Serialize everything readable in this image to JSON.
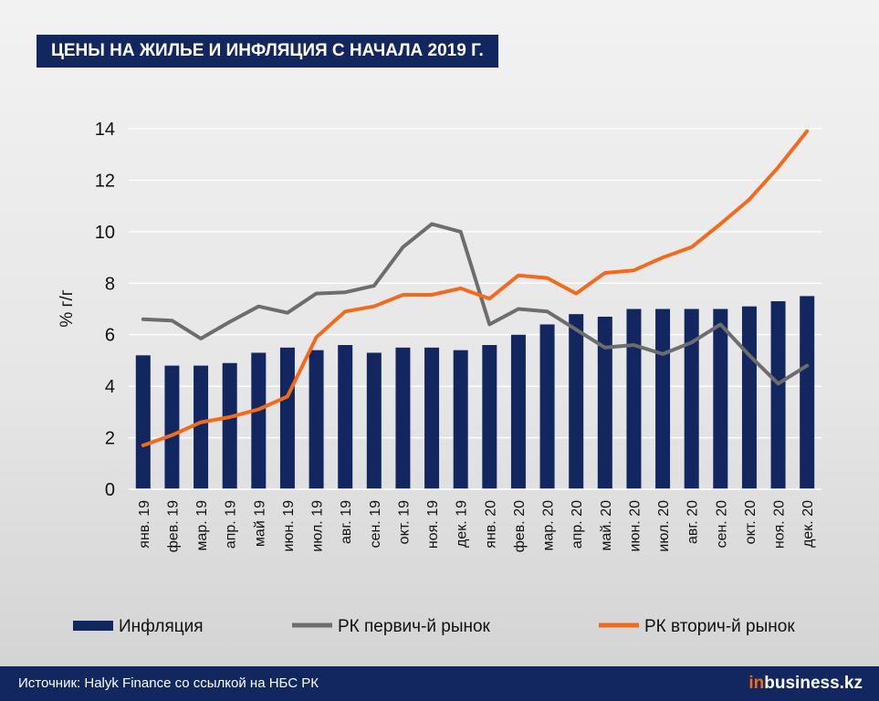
{
  "title": "ЦЕНЫ НА ЖИЛЬЕ И ИНФЛЯЦИЯ С НАЧАЛА 2019 Г.",
  "footer": {
    "source": "Источник: Halyk Finance со ссылкой на НБС РК",
    "logo_prefix": "in",
    "logo_rest": "business.kz"
  },
  "colors": {
    "bar": "#12275f",
    "primary_line": "#6d6d6d",
    "secondary_line": "#f26b1d",
    "grid": "#ffffff",
    "text": "#111111"
  },
  "chart_data": {
    "type": "bar+line",
    "ylabel": "% г/г",
    "ylim": [
      0,
      14
    ],
    "yticks": [
      "0",
      "2",
      "4",
      "6",
      "8",
      "10",
      "12",
      "14"
    ],
    "grid": true,
    "legend_position": "bottom",
    "categories": [
      "янв. 19",
      "фев. 19",
      "мар. 19",
      "апр. 19",
      "май 19",
      "июн. 19",
      "июл. 19",
      "авг. 19",
      "сен. 19",
      "окт. 19",
      "ноя. 19",
      "дек. 19",
      "янв. 20",
      "фев. 20",
      "мар. 20",
      "апр. 20",
      "май. 20",
      "июн. 20",
      "июл. 20",
      "авг. 20",
      "сен. 20",
      "окт. 20",
      "ноя. 20",
      "дек. 20"
    ],
    "series": [
      {
        "name": "Инфляция",
        "type": "bar",
        "values": [
          5.2,
          4.8,
          4.8,
          4.9,
          5.3,
          5.5,
          5.4,
          5.6,
          5.3,
          5.5,
          5.5,
          5.4,
          5.6,
          6.0,
          6.4,
          6.8,
          6.7,
          7.0,
          7.0,
          7.0,
          7.0,
          7.1,
          7.3,
          7.5
        ]
      },
      {
        "name": "РК первич-й рынок",
        "type": "line",
        "values": [
          6.6,
          6.55,
          5.85,
          6.5,
          7.1,
          6.85,
          7.6,
          7.65,
          7.9,
          9.4,
          10.3,
          10.0,
          6.4,
          7.0,
          6.9,
          6.2,
          5.5,
          5.6,
          5.25,
          5.7,
          6.4,
          5.2,
          4.1,
          4.8
        ]
      },
      {
        "name": "РК вторич-й рынок",
        "type": "line",
        "values": [
          1.7,
          2.1,
          2.6,
          2.8,
          3.1,
          3.6,
          5.9,
          6.9,
          7.1,
          7.55,
          7.55,
          7.8,
          7.4,
          8.3,
          8.2,
          7.6,
          8.4,
          8.5,
          9.0,
          9.4,
          10.3,
          11.25,
          12.5,
          13.9
        ]
      }
    ]
  }
}
